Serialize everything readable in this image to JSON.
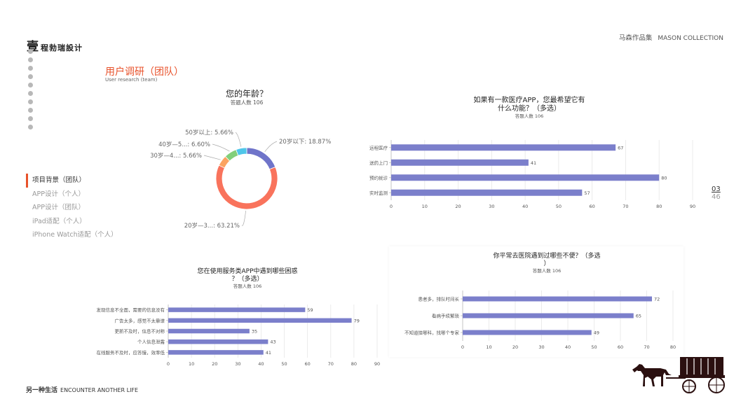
{
  "brand": {
    "logo_mark": "壹",
    "logo_text": "程勃瑞設计",
    "cn": "马森作品集",
    "en": "MASON COLLECTION"
  },
  "page": {
    "title": "用户调研（团队）",
    "subtitle": "User research (team)"
  },
  "nav": {
    "items": [
      {
        "label": "项目背景（团队）",
        "active": true
      },
      {
        "label": "APP设计（个人）",
        "active": false
      },
      {
        "label": "APP设计（团队）",
        "active": false
      },
      {
        "label": "iPad适配（个人）",
        "active": false
      },
      {
        "label": "iPhone Watch适配（个人）",
        "active": false
      }
    ]
  },
  "pagination": {
    "current": "03",
    "total": "46"
  },
  "footer": {
    "cn": "另一种生活",
    "en": "ENCOUNTER ANOTHER LIFE"
  },
  "colors": {
    "accent": "#e8522b",
    "bar": "#7b7fcb",
    "donut": [
      "#6f74c9",
      "#f9735c",
      "#fba361",
      "#82cf7a",
      "#4fc6e9"
    ]
  },
  "chart_data": [
    {
      "type": "pie",
      "title": "您的年龄？",
      "subtitle": "答题人数 106",
      "categories": [
        "20岁以下",
        "20岁—3...",
        "30岁—4...",
        "40岁—5...",
        "50岁以上"
      ],
      "values": [
        18.87,
        63.21,
        5.66,
        6.6,
        5.66
      ],
      "labels": [
        "20岁以下: 18.87%",
        "20岁—3...: 63.21%",
        "30岁—4...: 5.66%",
        "40岁—5...: 6.60%",
        "50岁以上: 5.66%"
      ]
    },
    {
      "type": "bar",
      "title": [
        "如果有一款医疗APP，您最希望它有",
        "什么功能？（多选）"
      ],
      "subtitle": "答题人数 106",
      "categories": [
        "远程医疗",
        "送药上门",
        "预约就诊",
        "实时监测"
      ],
      "values": [
        67,
        41,
        80,
        57
      ],
      "xlim": [
        0,
        90
      ],
      "ticks": [
        0,
        10,
        20,
        30,
        40,
        50,
        60,
        70,
        80,
        90
      ]
    },
    {
      "type": "bar",
      "title": [
        "您在使用服务类APP中遇到哪些困惑",
        "？（多选）"
      ],
      "subtitle": "答题人数 106",
      "categories": [
        "发现信息不全面，需要的信息没有",
        "广告太多，感觉不太靠谱",
        "更新不及时，信息不对称",
        "个人信息泄露",
        "在线服务不及时，应答慢，效率低"
      ],
      "values": [
        59,
        79,
        35,
        43,
        41
      ],
      "xlim": [
        0,
        90
      ],
      "ticks": [
        0,
        10,
        20,
        30,
        40,
        50,
        60,
        70,
        80,
        90
      ]
    },
    {
      "type": "bar",
      "title": [
        "你平常去医院遇到过哪些不便？（多选",
        "）"
      ],
      "subtitle": "答题人数 106",
      "categories": [
        "患者多，排队时间长",
        "看病手续繁琐",
        "不知道挂哪科，找哪个专家"
      ],
      "values": [
        72,
        65,
        49
      ],
      "xlim": [
        0,
        80
      ],
      "ticks": [
        0,
        10,
        20,
        30,
        40,
        50,
        60,
        70,
        80
      ]
    }
  ]
}
